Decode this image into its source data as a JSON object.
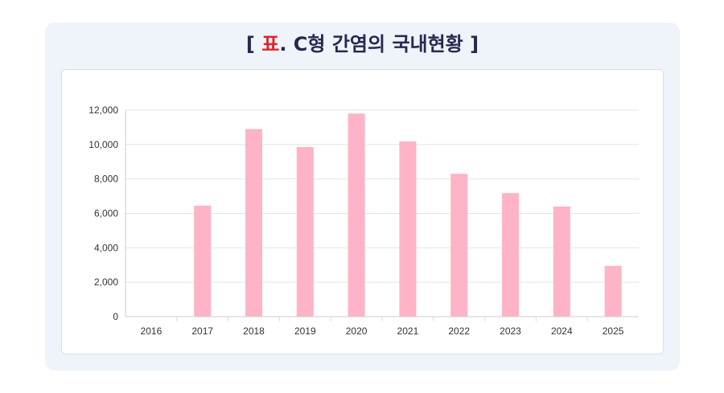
{
  "title": {
    "open": "[ ",
    "accent": "표",
    "rest": ". C형 간염의 국내현황 ]"
  },
  "colors": {
    "bar": "#ffb3c6",
    "accent": "#e0232b",
    "title": "#25294f",
    "grid": "#e4e4e4"
  },
  "chart_data": {
    "type": "bar",
    "categories": [
      "2016",
      "2017",
      "2018",
      "2019",
      "2020",
      "2021",
      "2022",
      "2023",
      "2024",
      "2025"
    ],
    "values": [
      0,
      6450,
      10900,
      9850,
      11800,
      10180,
      8300,
      7180,
      6400,
      2950
    ],
    "yticks": [
      "0",
      "2,000",
      "4,000",
      "6,000",
      "8,000",
      "10,000",
      "12,000"
    ],
    "ylim": [
      0,
      12000
    ],
    "title": "",
    "xlabel": "",
    "ylabel": "",
    "grid": true,
    "legend": "none"
  }
}
